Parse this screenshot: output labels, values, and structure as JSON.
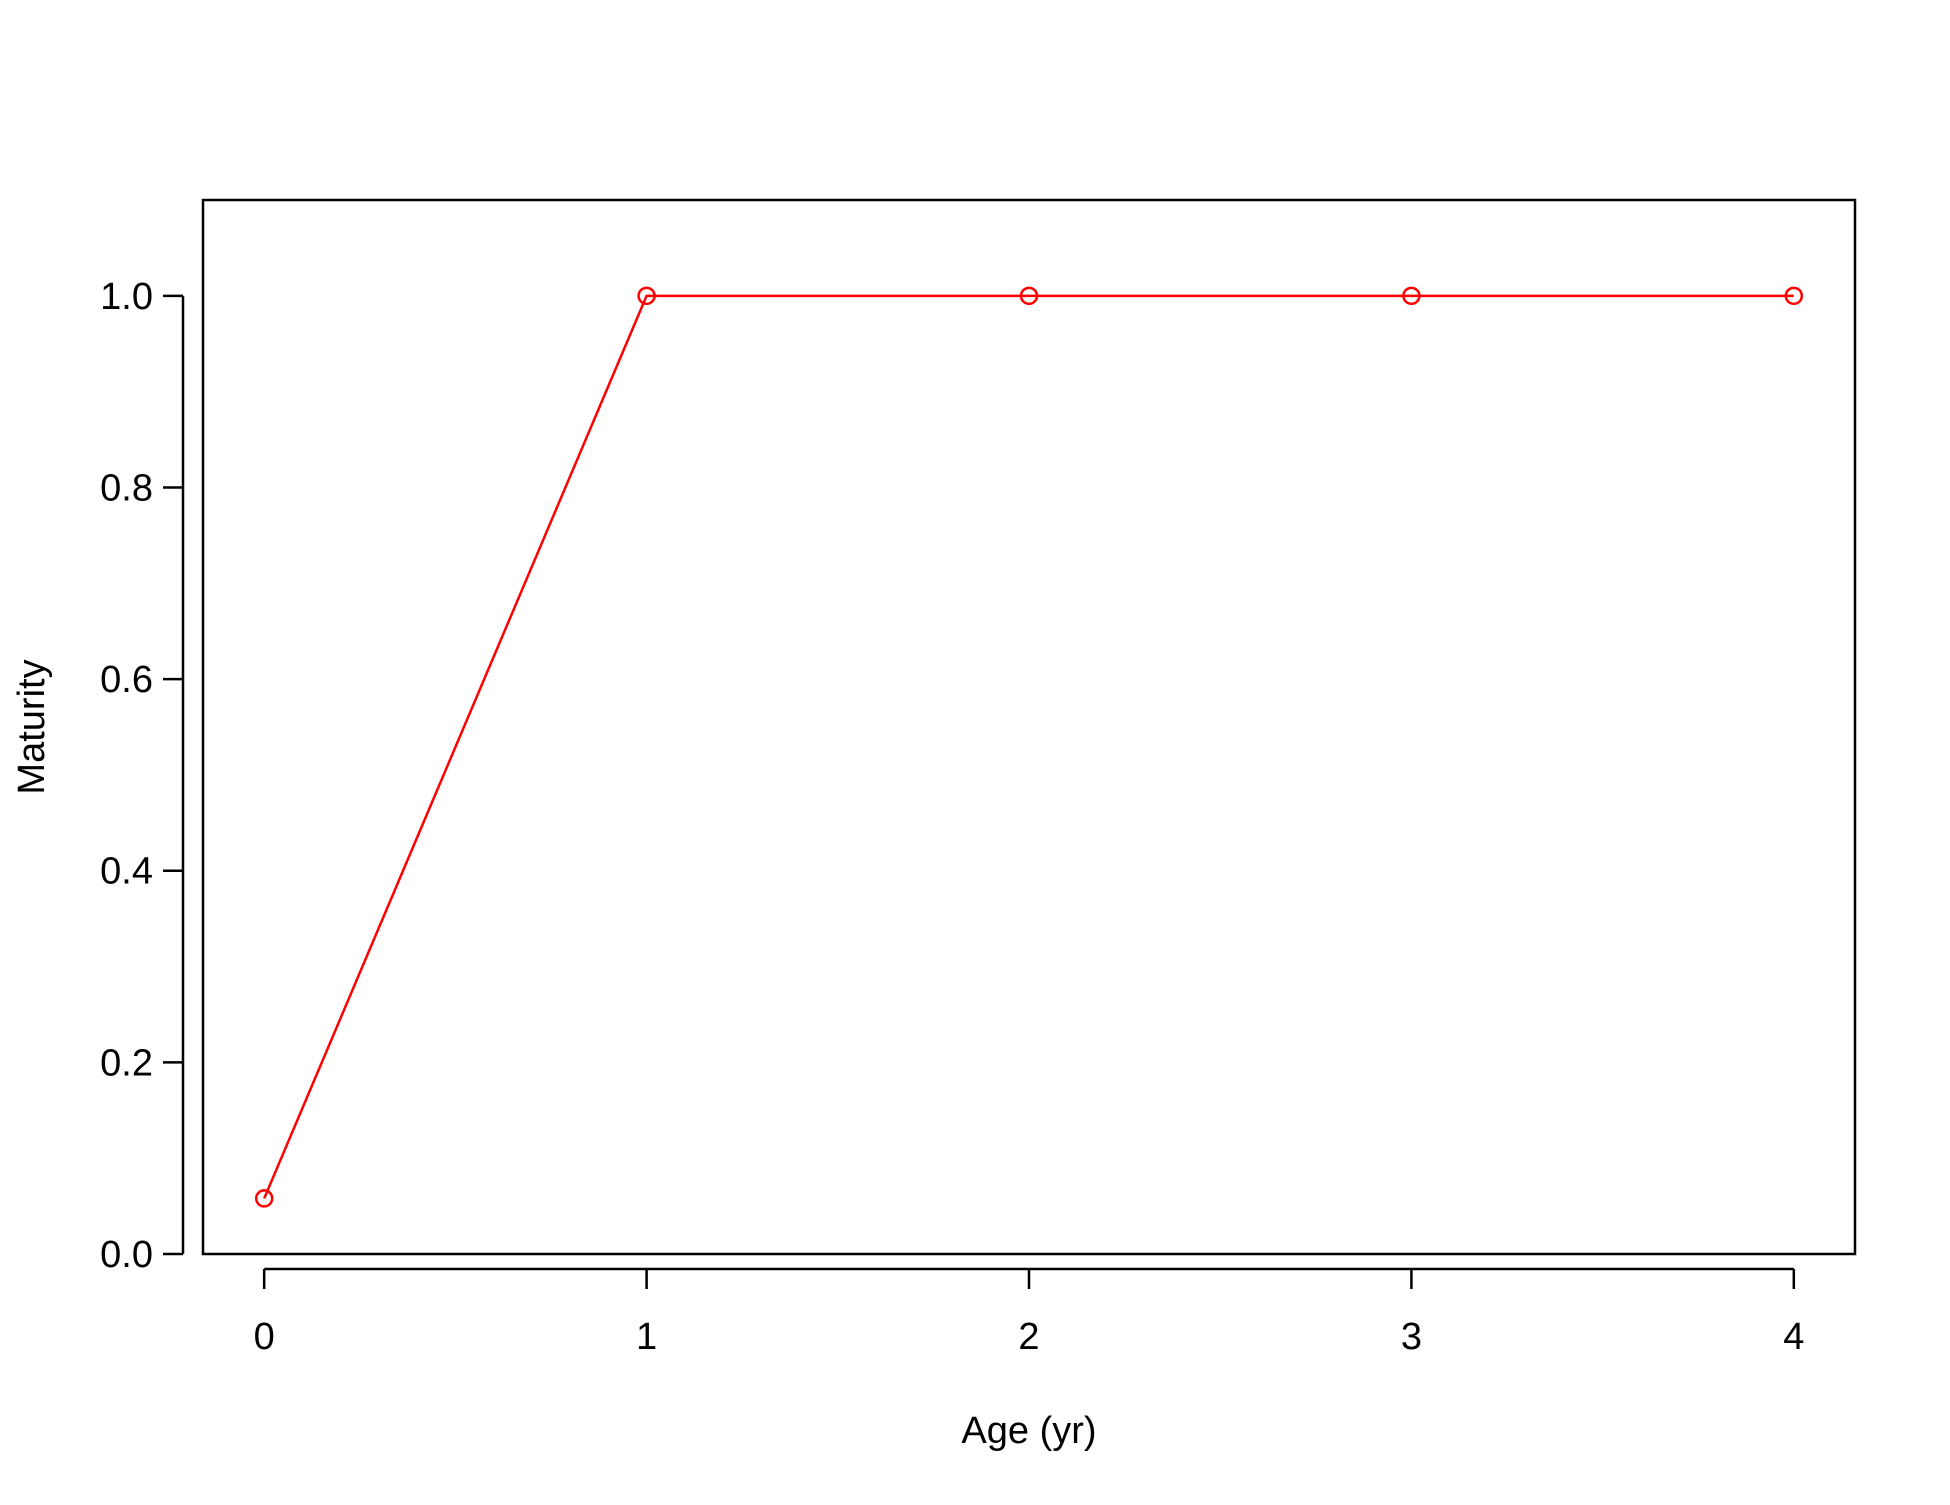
{
  "chart_data": {
    "type": "line",
    "title": "",
    "xlabel": "Age (yr)",
    "ylabel": "Maturity",
    "xlim": [
      -0.16,
      4.16
    ],
    "ylim": [
      0.0,
      1.1
    ],
    "x_ticks": [
      0,
      1,
      2,
      3,
      4
    ],
    "x_tick_labels": [
      "0",
      "1",
      "2",
      "3",
      "4"
    ],
    "y_ticks": [
      0.0,
      0.2,
      0.4,
      0.6,
      0.8,
      1.0
    ],
    "y_tick_labels": [
      "0.0",
      "0.2",
      "0.4",
      "0.6",
      "0.8",
      "1.0"
    ],
    "grid": false,
    "legend": "none",
    "series": [
      {
        "x": [
          0,
          1,
          2,
          3,
          4
        ],
        "y": [
          0.058,
          1.0,
          1.0,
          1.0,
          1.0
        ],
        "color": "#ff0000",
        "marker": "open-circle"
      }
    ]
  }
}
